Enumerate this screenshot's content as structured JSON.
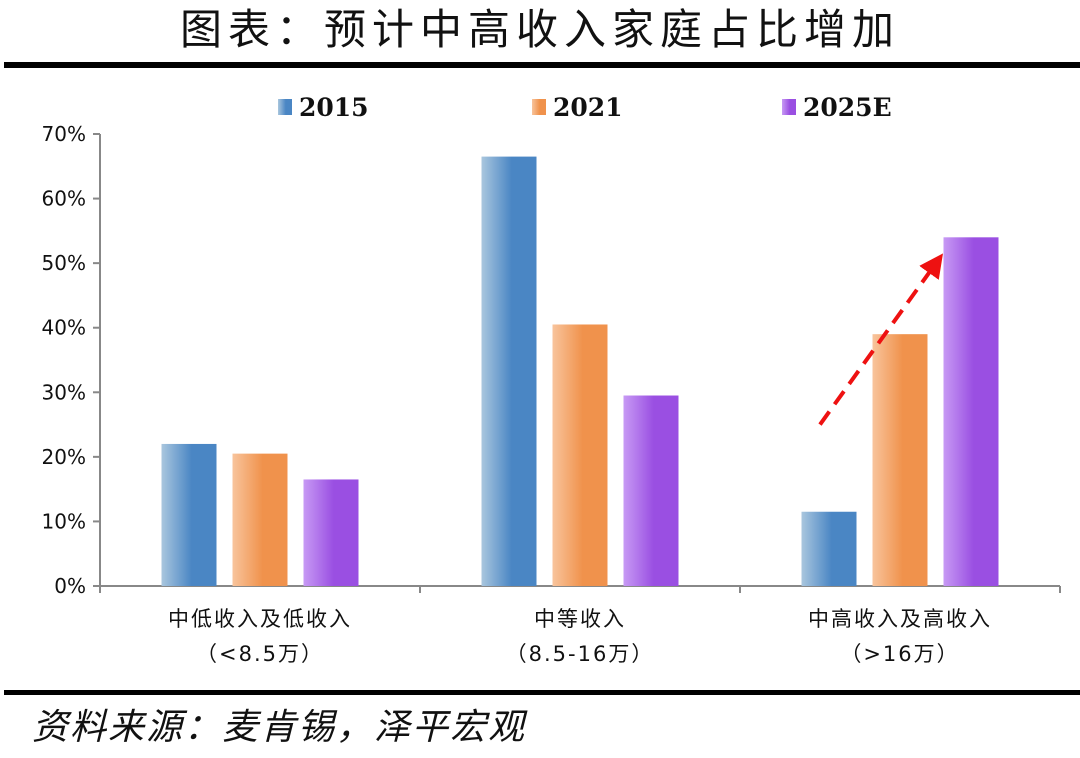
{
  "page": {
    "title": "图表：预计中高收入家庭占比增加",
    "source": "资料来源：麦肯锡，泽平宏观"
  },
  "colors": {
    "series": [
      "#4a86c4",
      "#f0924c",
      "#9a4fe2"
    ],
    "highlights": [
      "#a9c6de",
      "#f8c49c",
      "#c79af4"
    ],
    "arrow": "#ee1111",
    "axis": "#888888"
  },
  "chart_data": {
    "type": "bar",
    "categories": [
      [
        "中低收入及低收入",
        "（<8.5万）"
      ],
      [
        "中等收入",
        "（8.5-16万）"
      ],
      [
        "中高收入及高收入",
        "（>16万）"
      ]
    ],
    "series": [
      {
        "name": "2015",
        "values": [
          22,
          66.5,
          11.5
        ]
      },
      {
        "name": "2021",
        "values": [
          20.5,
          40.5,
          39
        ]
      },
      {
        "name": "2025E",
        "values": [
          16.5,
          29.5,
          54
        ]
      }
    ],
    "ylim": [
      0,
      70
    ],
    "yticks": [
      0,
      10,
      20,
      30,
      40,
      50,
      60,
      70
    ],
    "ytick_labels": [
      "0%",
      "10%",
      "20%",
      "30%",
      "40%",
      "50%",
      "60%",
      "70%"
    ],
    "legend_position": "top",
    "grid": false,
    "annotation": {
      "type": "dashed-arrow",
      "from": [
        2,
        25
      ],
      "to": [
        2.3,
        50
      ]
    },
    "title": "",
    "xlabel": "",
    "ylabel": ""
  }
}
